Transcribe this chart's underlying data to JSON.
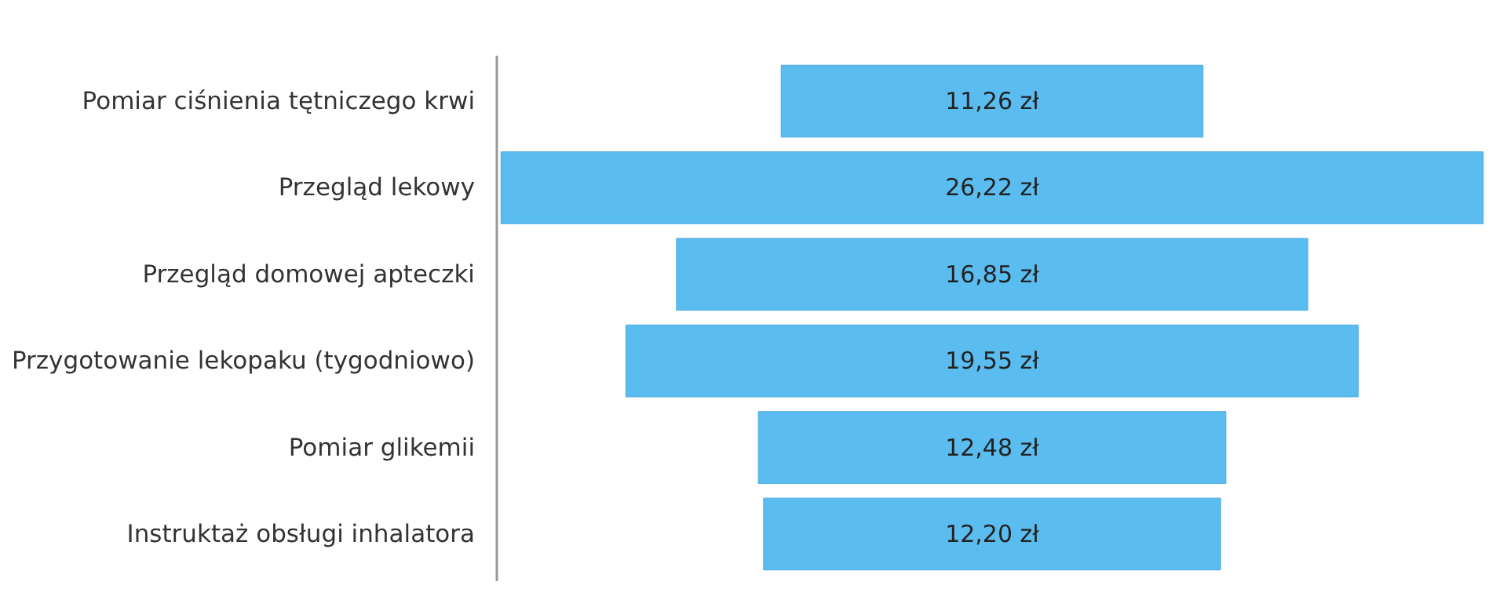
{
  "chart_data": {
    "type": "other",
    "categories": [
      "Pomiar ciśnienia tętniczego krwi",
      "Przegląd lekowy",
      "Przegląd domowej apteczki",
      "Przygotowanie lekopaku (tygodniowo)",
      "Pomiar glikemii",
      "Instruktaż obsługi inhalatora"
    ],
    "values": [
      11.26,
      26.22,
      16.85,
      19.55,
      12.48,
      12.2
    ],
    "value_labels": [
      "11,26 zł",
      "26,22 zł",
      "16,85 zł",
      "19,55 zł",
      "12,48 zł",
      "12,20 zł"
    ],
    "color": "#5bbcf0"
  }
}
